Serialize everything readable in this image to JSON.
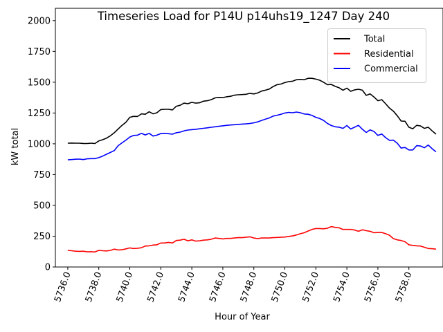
{
  "chart_data": {
    "type": "line",
    "title": "Timeseries Load for P14U p14uhs19_1247  Day 240",
    "xlabel": "Hour of Year",
    "ylabel": "kW total",
    "xlim": [
      5735.2,
      5760.2
    ],
    "ylim": [
      0,
      2100
    ],
    "x_ticks": [
      5736,
      5738,
      5740,
      5742,
      5744,
      5746,
      5748,
      5750,
      5752,
      5754,
      5756,
      5758
    ],
    "x_tick_labels": [
      "5736.0",
      "5738.0",
      "5740.0",
      "5742.0",
      "5744.0",
      "5746.0",
      "5748.0",
      "5750.0",
      "5752.0",
      "5754.0",
      "5756.0",
      "5758.0"
    ],
    "y_ticks": [
      0,
      250,
      500,
      750,
      1000,
      1250,
      1500,
      1750,
      2000
    ],
    "y_tick_labels": [
      "0",
      "250",
      "500",
      "750",
      "1000",
      "1250",
      "1500",
      "1750",
      "2000"
    ],
    "legend_position": "top-right",
    "x_start": 5736,
    "x_step": 0.25,
    "series": [
      {
        "name": "Total",
        "color": "#000000",
        "values": [
          1005,
          1006,
          1005,
          1005,
          1003,
          1002,
          1005,
          1002,
          1023,
          1033,
          1046,
          1065,
          1090,
          1120,
          1150,
          1175,
          1215,
          1223,
          1222,
          1243,
          1240,
          1260,
          1243,
          1252,
          1278,
          1280,
          1280,
          1275,
          1305,
          1313,
          1330,
          1325,
          1337,
          1330,
          1333,
          1346,
          1350,
          1358,
          1373,
          1377,
          1375,
          1382,
          1386,
          1395,
          1398,
          1400,
          1402,
          1410,
          1405,
          1413,
          1428,
          1435,
          1445,
          1465,
          1480,
          1485,
          1497,
          1505,
          1508,
          1520,
          1522,
          1520,
          1532,
          1532,
          1525,
          1516,
          1500,
          1480,
          1482,
          1466,
          1455,
          1435,
          1452,
          1426,
          1438,
          1443,
          1435,
          1393,
          1405,
          1380,
          1350,
          1358,
          1325,
          1290,
          1265,
          1228,
          1185,
          1183,
          1135,
          1122,
          1150,
          1145,
          1125,
          1135,
          1105,
          1078
        ]
      },
      {
        "name": "Residential",
        "color": "#ff0000",
        "values": [
          135,
          132,
          128,
          127,
          128,
          123,
          124,
          122,
          135,
          132,
          130,
          135,
          145,
          138,
          140,
          147,
          155,
          150,
          152,
          156,
          170,
          172,
          178,
          180,
          195,
          195,
          200,
          195,
          215,
          218,
          225,
          212,
          220,
          210,
          212,
          218,
          220,
          225,
          235,
          232,
          228,
          232,
          232,
          235,
          238,
          238,
          242,
          245,
          235,
          230,
          235,
          236,
          235,
          238,
          240,
          242,
          243,
          248,
          252,
          260,
          270,
          278,
          292,
          305,
          312,
          312,
          310,
          315,
          328,
          322,
          318,
          305,
          305,
          305,
          300,
          290,
          302,
          295,
          290,
          278,
          280,
          280,
          270,
          258,
          230,
          220,
          215,
          205,
          180,
          175,
          172,
          170,
          160,
          150,
          148,
          145
        ]
      },
      {
        "name": "Commercial",
        "color": "#0000ff",
        "values": [
          870,
          872,
          875,
          876,
          872,
          878,
          880,
          880,
          888,
          900,
          915,
          930,
          945,
          985,
          1008,
          1030,
          1055,
          1068,
          1070,
          1085,
          1072,
          1085,
          1063,
          1070,
          1083,
          1085,
          1082,
          1078,
          1090,
          1095,
          1105,
          1112,
          1115,
          1118,
          1122,
          1126,
          1130,
          1134,
          1138,
          1142,
          1146,
          1150,
          1153,
          1155,
          1158,
          1160,
          1162,
          1165,
          1170,
          1178,
          1190,
          1200,
          1210,
          1225,
          1232,
          1240,
          1250,
          1255,
          1252,
          1258,
          1252,
          1242,
          1240,
          1230,
          1215,
          1205,
          1190,
          1165,
          1148,
          1138,
          1135,
          1125,
          1148,
          1120,
          1135,
          1150,
          1118,
          1092,
          1113,
          1100,
          1068,
          1080,
          1050,
          1028,
          1030,
          1005,
          965,
          970,
          950,
          950,
          985,
          982,
          968,
          990,
          960,
          935
        ]
      }
    ]
  }
}
